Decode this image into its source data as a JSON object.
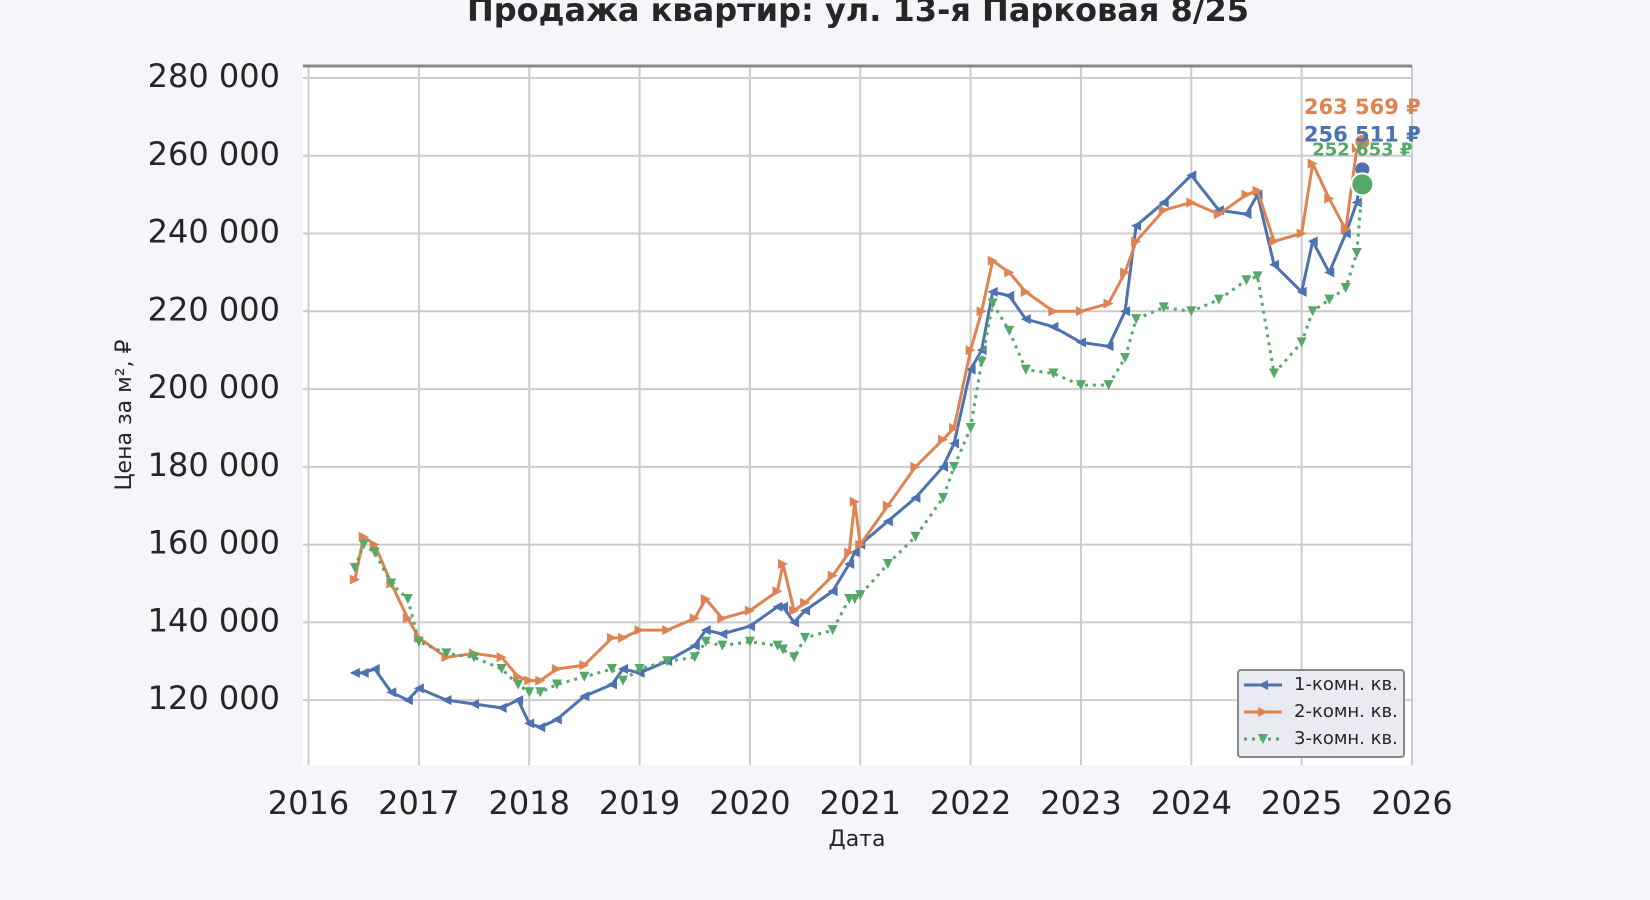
{
  "chart_data": {
    "type": "line",
    "title": "Продажа квартир: ул. 13-я Парковая 8/25",
    "x_label": "Дата",
    "y_label": "Цена за м², ₽",
    "x": [
      2016.42,
      2016.5,
      2016.6,
      2016.75,
      2016.9,
      2017.0,
      2017.25,
      2017.5,
      2017.75,
      2017.9,
      2018.0,
      2018.1,
      2018.25,
      2018.5,
      2018.75,
      2018.85,
      2019.0,
      2019.25,
      2019.5,
      2019.6,
      2019.75,
      2020.0,
      2020.25,
      2020.3,
      2020.4,
      2020.5,
      2020.75,
      2020.9,
      2020.95,
      2021.0,
      2021.25,
      2021.5,
      2021.75,
      2021.85,
      2022.0,
      2022.1,
      2022.2,
      2022.35,
      2022.5,
      2022.75,
      2023.0,
      2023.25,
      2023.4,
      2023.5,
      2023.75,
      2024.0,
      2024.25,
      2024.5,
      2024.6,
      2024.75,
      2025.0,
      2025.1,
      2025.25,
      2025.4,
      2025.5,
      2025.55
    ],
    "series": [
      {
        "name": "1-комн. кв.",
        "color": "#4c72b0",
        "marker": "left",
        "dashed": false,
        "end_label": "256 511 ₽",
        "values": [
          127000,
          127000,
          128000,
          122000,
          120000,
          123000,
          120000,
          119000,
          118000,
          120000,
          114000,
          113000,
          115000,
          121000,
          124000,
          128000,
          127000,
          130000,
          134000,
          138000,
          137000,
          139000,
          144000,
          144000,
          140000,
          143000,
          148000,
          155000,
          158000,
          160000,
          166000,
          172000,
          180000,
          186000,
          205000,
          210000,
          225000,
          224000,
          218000,
          216000,
          212000,
          211000,
          220000,
          242000,
          248000,
          255000,
          246000,
          245000,
          250000,
          232000,
          225000,
          238000,
          230000,
          240000,
          248000,
          256511
        ]
      },
      {
        "name": "2-комн. кв.",
        "color": "#dd8452",
        "marker": "right",
        "dashed": false,
        "end_label": "263 569 ₽",
        "values": [
          151000,
          162000,
          160000,
          150000,
          141000,
          136000,
          131000,
          132000,
          131000,
          126000,
          125000,
          125000,
          128000,
          129000,
          136000,
          136000,
          138000,
          138000,
          141000,
          146000,
          141000,
          143000,
          148000,
          155000,
          143000,
          145000,
          152000,
          158000,
          171000,
          160000,
          170000,
          180000,
          187000,
          190000,
          210000,
          220000,
          233000,
          230000,
          225000,
          220000,
          220000,
          222000,
          230000,
          238000,
          246000,
          248000,
          245000,
          250000,
          251000,
          238000,
          240000,
          258000,
          249000,
          241000,
          262000,
          263569
        ]
      },
      {
        "name": "3-комн. кв.",
        "color": "#55a868",
        "marker": "down",
        "dashed": true,
        "end_label": "252 653 ₽",
        "values": [
          154000,
          160000,
          158000,
          150000,
          146000,
          135000,
          132000,
          131000,
          128000,
          124000,
          122000,
          122000,
          124000,
          126000,
          128000,
          125000,
          128000,
          130000,
          131000,
          135000,
          134000,
          135000,
          134000,
          133000,
          131000,
          136000,
          138000,
          146000,
          146000,
          147000,
          155000,
          162000,
          172000,
          180000,
          190000,
          207000,
          222000,
          215000,
          205000,
          204000,
          201000,
          201000,
          208000,
          218000,
          221000,
          220000,
          223000,
          228000,
          229000,
          204000,
          212000,
          220000,
          223000,
          226000,
          235000,
          252653
        ]
      }
    ],
    "xlim": [
      2015.95,
      2026.0
    ],
    "xticks": [
      2016,
      2017,
      2018,
      2019,
      2020,
      2021,
      2022,
      2023,
      2024,
      2025,
      2026
    ],
    "ylim": [
      103300,
      283100
    ],
    "yticks": [
      {
        "value": 120000,
        "label": "120 000"
      },
      {
        "value": 140000,
        "label": "140 000"
      },
      {
        "value": 160000,
        "label": "160 000"
      },
      {
        "value": 180000,
        "label": "180 000"
      },
      {
        "value": 200000,
        "label": "200 000"
      },
      {
        "value": 220000,
        "label": "220 000"
      },
      {
        "value": 240000,
        "label": "240 000"
      },
      {
        "value": 260000,
        "label": "260 000"
      },
      {
        "value": 280000,
        "label": "280 000"
      }
    ],
    "grid": true,
    "legend": "lower right"
  }
}
